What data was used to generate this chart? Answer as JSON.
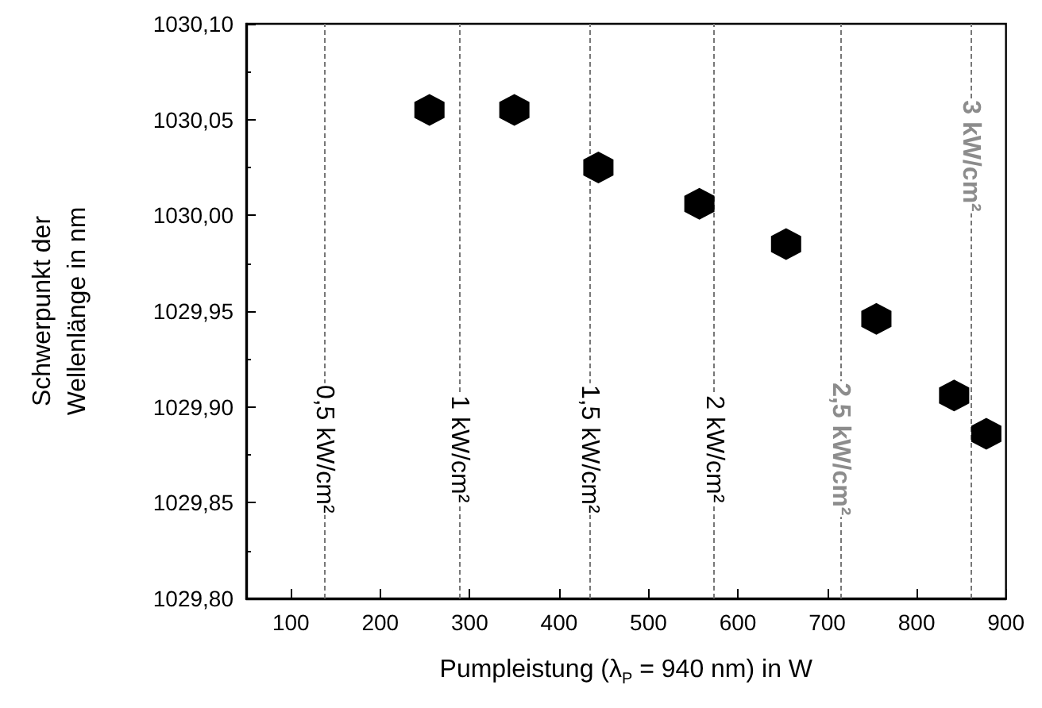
{
  "chart_data": {
    "type": "scatter",
    "xlabel": "Pumpleistung (λ$_{P}$ = 940 nm) in W",
    "ylabel": "Schwerpunkt der\nWellenlänge in nm",
    "x": [
      255,
      350,
      444,
      557,
      654,
      755,
      842,
      878
    ],
    "series": [
      {
        "color": "#000000",
        "values": [
          1030.055,
          1030.055,
          1030.025,
          1030.006,
          1029.985,
          1029.946,
          1029.906,
          1029.886
        ]
      }
    ],
    "xlim": [
      50,
      900
    ],
    "xticks": [
      100,
      200,
      300,
      400,
      500,
      600,
      700,
      800,
      900
    ],
    "ylim": [
      1029.8,
      1030.1
    ],
    "yticks": [
      {
        "value": 1029.8,
        "label": "1029,80"
      },
      {
        "value": 1029.85,
        "label": "1029,85"
      },
      {
        "value": 1029.9,
        "label": "1029,90"
      },
      {
        "value": 1029.95,
        "label": "1029,95"
      },
      {
        "value": 1030.0,
        "label": "1030,00"
      },
      {
        "value": 1030.05,
        "label": "1030,05"
      },
      {
        "value": 1030.1,
        "label": "1030,10"
      }
    ],
    "ref_lines": [
      {
        "axis": "x",
        "value": 137,
        "label": "0,5 kW/cm²",
        "color": "#777777",
        "line_style": "dashed"
      },
      {
        "axis": "x",
        "value": 288,
        "label": "1 kW/cm²",
        "color": "#777777",
        "line_style": "dashed"
      },
      {
        "axis": "x",
        "value": 434,
        "label": "1,5 kW/cm²",
        "color": "#777777",
        "line_style": "dashed"
      },
      {
        "axis": "x",
        "value": 573,
        "label": "2 kW/cm²",
        "color": "#777777",
        "line_style": "dashed"
      },
      {
        "axis": "x",
        "value": 715,
        "label": "2,5 kW/cm²",
        "color": "#777777",
        "line_style": "dashed"
      },
      {
        "axis": "x",
        "value": 860,
        "label": "3 kW/cm²",
        "color": "#777777",
        "line_style": "dashed"
      }
    ],
    "grid": false
  }
}
